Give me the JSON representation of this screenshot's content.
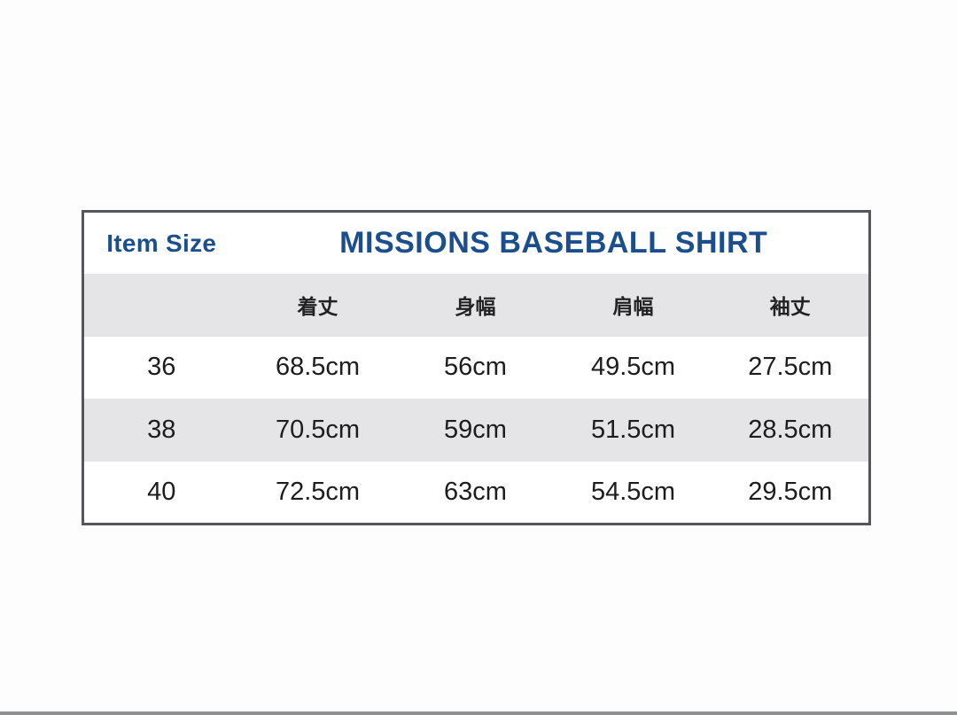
{
  "page": {
    "background_color": "#fdfdfe",
    "bottom_bar_color": "#8f9092"
  },
  "table": {
    "item_size_label": "Item Size",
    "title": "MISSIONS BASEBALL SHIRT",
    "accent_color": "#1b4e8c",
    "stripe_color": "#e5e5e7",
    "border_color": "#55565a",
    "columns": [
      "着丈",
      "身幅",
      "肩幅",
      "袖丈"
    ],
    "rows": [
      {
        "size": "36",
        "values": [
          "68.5cm",
          "56cm",
          "49.5cm",
          "27.5cm"
        ]
      },
      {
        "size": "38",
        "values": [
          "70.5cm",
          "59cm",
          "51.5cm",
          "28.5cm"
        ]
      },
      {
        "size": "40",
        "values": [
          "72.5cm",
          "63cm",
          "54.5cm",
          "29.5cm"
        ]
      }
    ]
  }
}
